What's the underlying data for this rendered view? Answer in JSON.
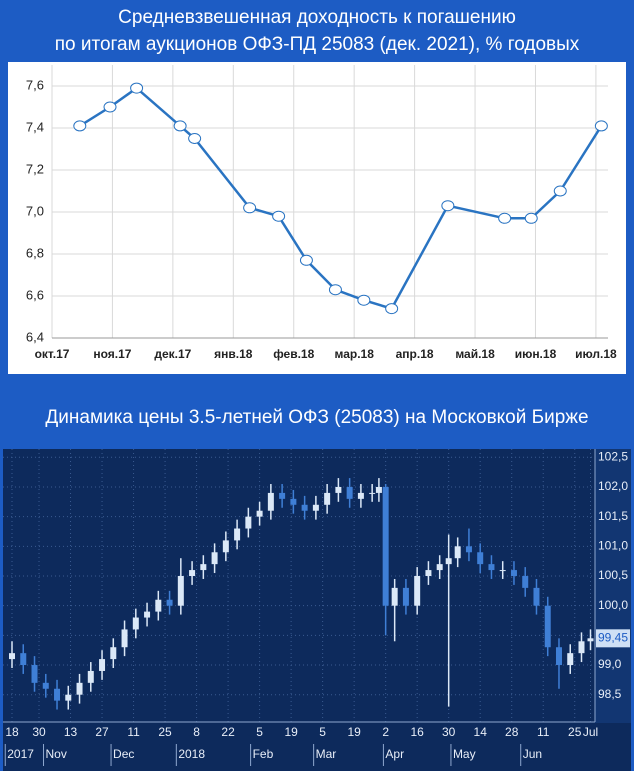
{
  "chart_data": [
    {
      "type": "line",
      "title": [
        "Средневзвешенная доходность к погашению",
        "по итогам аукционов ОФЗ-ПД 25083 (дек. 2021), % годовых"
      ],
      "x": [
        0.46,
        0.96,
        1.4,
        2.12,
        2.36,
        3.27,
        3.75,
        4.21,
        4.69,
        5.16,
        5.62,
        6.55,
        7.49,
        7.93,
        8.41,
        9.09
      ],
      "series": [
        {
          "color": "#2a74c2",
          "values": [
            7.41,
            7.5,
            7.59,
            7.41,
            7.35,
            7.02,
            6.98,
            6.77,
            6.63,
            6.58,
            6.54,
            7.03,
            6.97,
            6.97,
            7.1,
            7.41
          ]
        }
      ],
      "xlim": [
        0,
        9.2
      ],
      "xticks": [
        {
          "value": 0,
          "label": "окт.17"
        },
        {
          "value": 1,
          "label": "ноя.17"
        },
        {
          "value": 2,
          "label": "дек.17"
        },
        {
          "value": 3,
          "label": "янв.18"
        },
        {
          "value": 4,
          "label": "фев.18"
        },
        {
          "value": 5,
          "label": "мар.18"
        },
        {
          "value": 6,
          "label": "апр.18"
        },
        {
          "value": 7,
          "label": "май.18"
        },
        {
          "value": 8,
          "label": "июн.18"
        },
        {
          "value": 9,
          "label": "июл.18"
        }
      ],
      "ylim": [
        6.4,
        7.7
      ],
      "yticks": [
        {
          "value": 6.4,
          "label": "6,4"
        },
        {
          "value": 6.6,
          "label": "6,6"
        },
        {
          "value": 6.8,
          "label": "6,8"
        },
        {
          "value": 7.0,
          "label": "7,0"
        },
        {
          "value": 7.2,
          "label": "7,2"
        },
        {
          "value": 7.4,
          "label": "7,4"
        },
        {
          "value": 7.6,
          "label": "7,6"
        }
      ],
      "grid": true
    },
    {
      "type": "candlestick",
      "title": "Динамика цены 3.5-летней ОФЗ (25083) на Московкой Бирже",
      "x": [
        0,
        5,
        10,
        15,
        20,
        25,
        30,
        35,
        40,
        45,
        50,
        55,
        60,
        65,
        70,
        75,
        80,
        85,
        90,
        95,
        100,
        105,
        110,
        115,
        120,
        125,
        130,
        135,
        140,
        145,
        150,
        155,
        160,
        163,
        166,
        170,
        175,
        180,
        185,
        190,
        194,
        198,
        203,
        208,
        213,
        218,
        223,
        228,
        233,
        238,
        243,
        248,
        253,
        257
      ],
      "open": [
        99.1,
        99.2,
        99.0,
        98.7,
        98.6,
        98.4,
        98.5,
        98.7,
        98.9,
        99.1,
        99.3,
        99.6,
        99.8,
        99.9,
        100.1,
        100.0,
        100.5,
        100.6,
        100.7,
        100.9,
        101.1,
        101.3,
        101.5,
        101.6,
        101.9,
        101.8,
        101.7,
        101.6,
        101.7,
        101.9,
        102.0,
        101.8,
        101.9,
        101.9,
        102.0,
        100.0,
        100.3,
        100.0,
        100.5,
        100.6,
        100.7,
        100.8,
        101.0,
        100.9,
        100.7,
        100.6,
        100.6,
        100.5,
        100.3,
        100.0,
        99.3,
        99.0,
        99.2,
        99.4
      ],
      "high": [
        99.4,
        99.35,
        99.15,
        98.85,
        98.75,
        98.65,
        98.85,
        99.05,
        99.25,
        99.45,
        99.75,
        99.95,
        100.05,
        100.25,
        100.25,
        100.8,
        100.75,
        100.85,
        101.05,
        101.25,
        101.45,
        101.65,
        101.75,
        102.05,
        102.05,
        101.95,
        101.85,
        101.85,
        102.05,
        102.15,
        102.15,
        102.05,
        102.05,
        102.15,
        102.05,
        100.45,
        100.45,
        100.65,
        100.75,
        100.85,
        101.2,
        101.15,
        101.3,
        101.05,
        100.85,
        100.75,
        100.75,
        100.65,
        100.45,
        100.15,
        99.45,
        99.35,
        99.55,
        99.6
      ],
      "low": [
        98.95,
        98.85,
        98.55,
        98.45,
        98.25,
        98.25,
        98.35,
        98.55,
        98.75,
        98.95,
        99.15,
        99.45,
        99.65,
        99.75,
        99.85,
        99.85,
        100.35,
        100.45,
        100.55,
        100.75,
        100.95,
        101.15,
        101.35,
        101.45,
        101.65,
        101.55,
        101.45,
        101.45,
        101.55,
        101.75,
        101.65,
        101.65,
        101.75,
        101.75,
        99.5,
        99.4,
        99.85,
        99.85,
        100.35,
        100.45,
        98.3,
        100.65,
        100.75,
        100.55,
        100.45,
        100.45,
        100.35,
        100.15,
        99.85,
        99.15,
        98.6,
        98.85,
        99.05,
        99.25
      ],
      "close": [
        99.2,
        99.0,
        98.7,
        98.6,
        98.4,
        98.5,
        98.7,
        98.9,
        99.1,
        99.3,
        99.6,
        99.8,
        99.9,
        100.1,
        100.0,
        100.5,
        100.6,
        100.7,
        100.9,
        101.1,
        101.3,
        101.5,
        101.6,
        101.9,
        101.8,
        101.7,
        101.6,
        101.7,
        101.9,
        102.0,
        101.8,
        101.9,
        101.9,
        102.0,
        100.0,
        100.3,
        100.0,
        100.5,
        100.6,
        100.7,
        100.8,
        101.0,
        100.9,
        100.7,
        100.6,
        100.6,
        100.5,
        100.3,
        100.0,
        99.3,
        99.0,
        99.2,
        99.4,
        99.45
      ],
      "up_color": "#dbe8f7",
      "down_color": "#3f7fd6",
      "xlim": [
        -4,
        259
      ],
      "xticks": [
        {
          "value": 0,
          "label": "18"
        },
        {
          "value": 12,
          "label": "30"
        },
        {
          "value": 26,
          "label": "13"
        },
        {
          "value": 40,
          "label": "27"
        },
        {
          "value": 54,
          "label": "11"
        },
        {
          "value": 68,
          "label": "25"
        },
        {
          "value": 82,
          "label": "8"
        },
        {
          "value": 96,
          "label": "22"
        },
        {
          "value": 110,
          "label": "5"
        },
        {
          "value": 124,
          "label": "19"
        },
        {
          "value": 138,
          "label": "5"
        },
        {
          "value": 152,
          "label": "19"
        },
        {
          "value": 166,
          "label": "2"
        },
        {
          "value": 180,
          "label": "16"
        },
        {
          "value": 194,
          "label": "30"
        },
        {
          "value": 208,
          "label": "14"
        },
        {
          "value": 222,
          "label": "28"
        },
        {
          "value": 236,
          "label": "11"
        },
        {
          "value": 250,
          "label": "25"
        },
        {
          "value": 257,
          "label": "Jul"
        }
      ],
      "xticks_months": [
        {
          "value": -3,
          "label": "2017"
        },
        {
          "value": 14,
          "label": "Nov"
        },
        {
          "value": 44,
          "label": "Dec"
        },
        {
          "value": 73,
          "label": "2018"
        },
        {
          "value": 106,
          "label": "Feb"
        },
        {
          "value": 134,
          "label": "Mar"
        },
        {
          "value": 165,
          "label": "Apr"
        },
        {
          "value": 195,
          "label": "May"
        },
        {
          "value": 226,
          "label": "Jun"
        }
      ],
      "ylim": [
        98.04,
        102.64
      ],
      "yticks": [
        {
          "value": 98.5,
          "label": "98,5"
        },
        {
          "value": 99.0,
          "label": "99,0"
        },
        {
          "value": 99.5,
          "label": "99,5"
        },
        {
          "value": 100.0,
          "label": "100,0"
        },
        {
          "value": 100.5,
          "label": "100,5"
        },
        {
          "value": 101.0,
          "label": "101,0"
        },
        {
          "value": 101.5,
          "label": "101,5"
        },
        {
          "value": 102.0,
          "label": "102,0"
        },
        {
          "value": 102.5,
          "label": "102,5"
        }
      ],
      "last_price": {
        "value": 99.45,
        "label": "99,45"
      },
      "grid": true
    }
  ]
}
